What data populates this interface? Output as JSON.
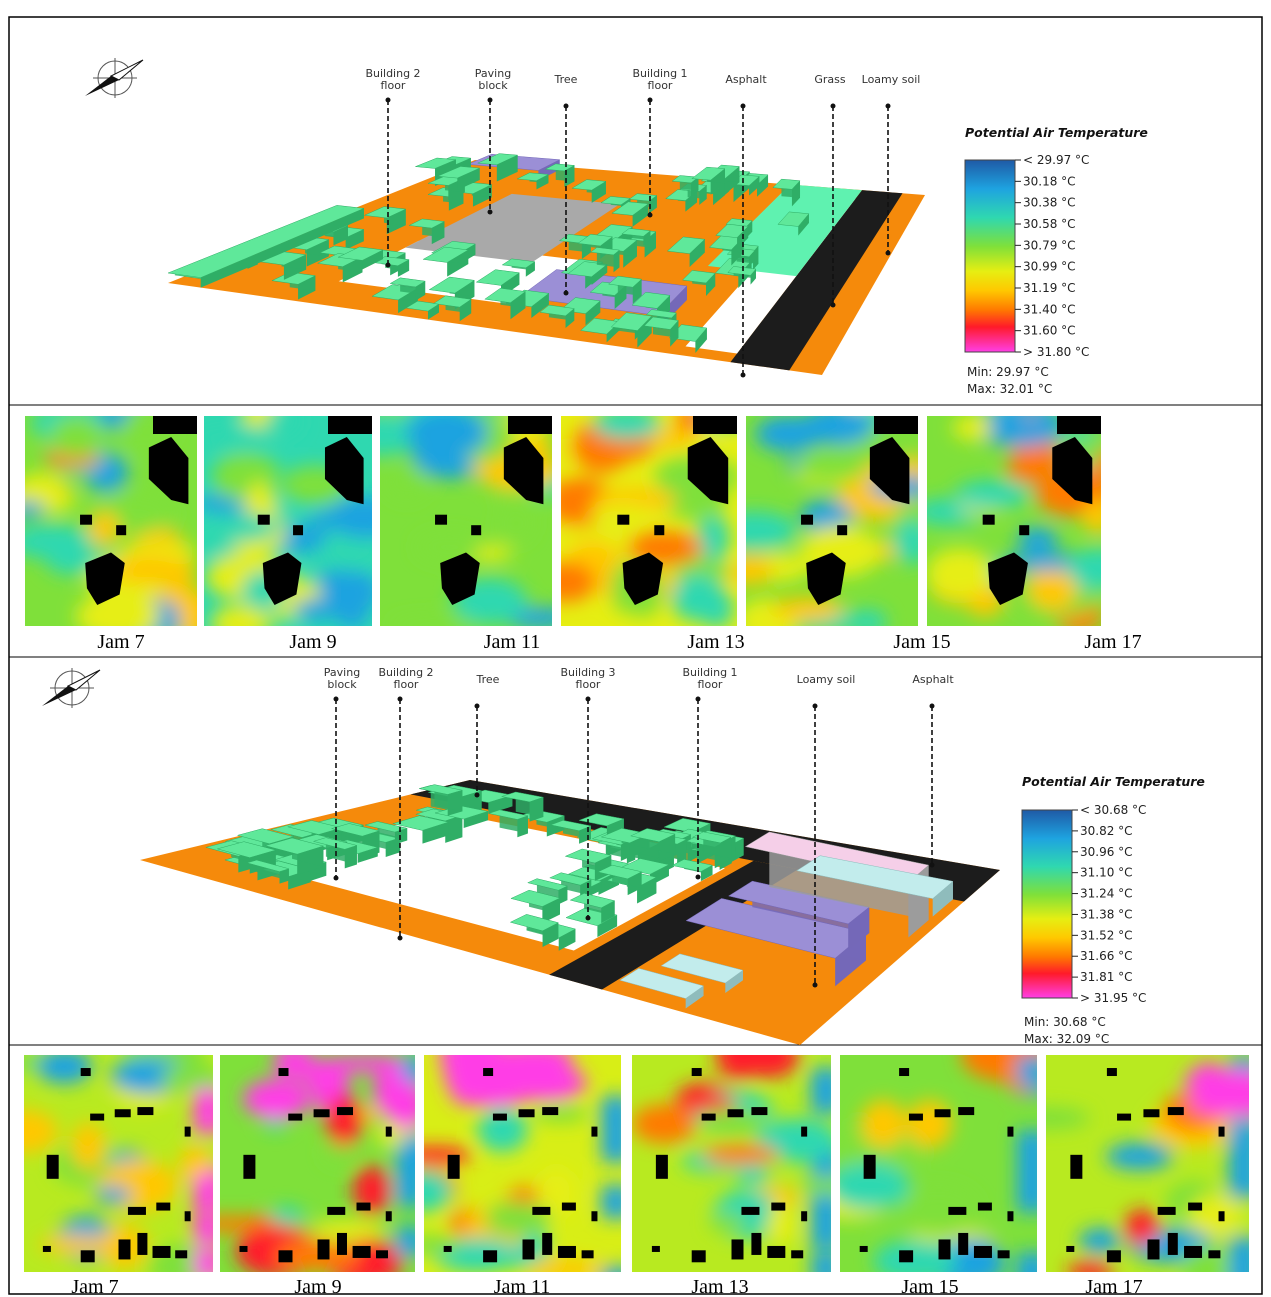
{
  "model_1": {
    "labels": [
      "Building 2 floor",
      "Paving block",
      "Tree",
      "Building 1 floor",
      "Asphalt",
      "Grass",
      "Loamy soil"
    ],
    "legend": {
      "title": "Potential Air Temperature",
      "items": [
        "< 29.97 °C",
        "30.18 °C",
        "30.38 °C",
        "30.58 °C",
        "30.79 °C",
        "30.99 °C",
        "31.19 °C",
        "31.40 °C",
        "31.60 °C",
        "> 31.80 °C"
      ],
      "min": "Min: 29.97 °C",
      "max": "Max: 32.01 °C"
    }
  },
  "hours_1": [
    "Jam 7",
    "Jam 9",
    "Jam 11",
    "Jam 13",
    "Jam 15",
    "Jam 17"
  ],
  "model_2": {
    "labels": [
      "Paving block",
      "Building 2 floor",
      "Tree",
      "Building 3 floor",
      "Building 1 floor",
      "Loamy soil",
      "Asphalt"
    ],
    "legend": {
      "title": "Potential Air Temperature",
      "items": [
        "< 30.68 °C",
        "30.82 °C",
        "30.96 °C",
        "31.10 °C",
        "31.24 °C",
        "31.38 °C",
        "31.52 °C",
        "31.66 °C",
        "31.81 °C",
        "> 31.95 °C"
      ],
      "min": "Min: 30.68 °C",
      "max": "Max: 32.09 °C"
    }
  },
  "hours_2": [
    "Jam 7",
    "Jam 9",
    "Jam 11",
    "Jam 13",
    "Jam 15",
    "Jam 17"
  ]
}
